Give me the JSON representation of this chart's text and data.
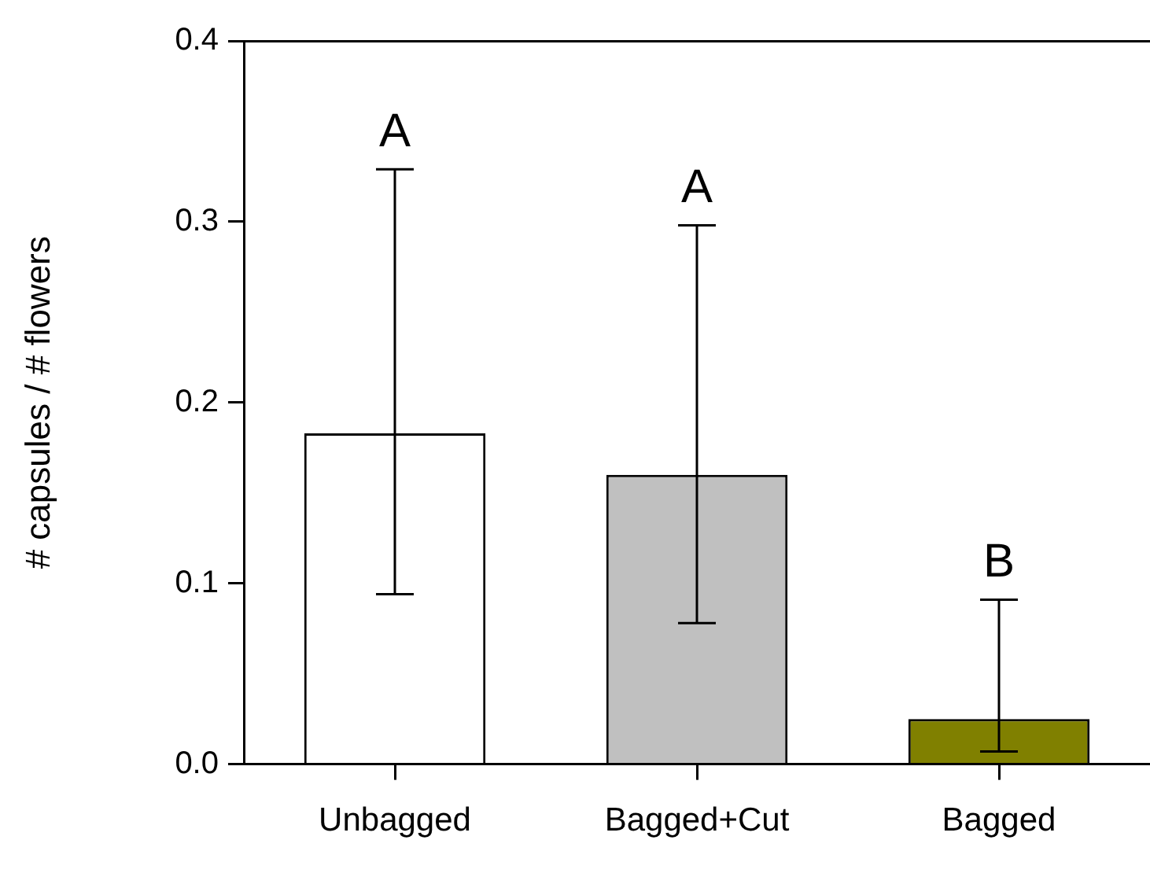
{
  "chart_data": {
    "type": "bar",
    "ylabel": "# capsules / # flowers",
    "categories": [
      "Unbagged",
      "Bagged+Cut",
      "Bagged"
    ],
    "values": [
      0.183,
      0.16,
      0.025
    ],
    "colors": [
      "#ffffff",
      "#c0c0c0",
      "#808000"
    ],
    "errors": [
      [
        0.094,
        0.329
      ],
      [
        0.078,
        0.298
      ],
      [
        0.007,
        0.091
      ]
    ],
    "ylim": [
      0,
      0.4
    ],
    "yticks": [
      {
        "value": 0,
        "label": "0.0"
      },
      {
        "value": 0.1,
        "label": "0.1"
      },
      {
        "value": 0.2,
        "label": "0.2"
      },
      {
        "value": 0.3,
        "label": "0.3"
      },
      {
        "value": 0.4,
        "label": "0.4"
      }
    ],
    "annotations": [
      {
        "text": "A",
        "x": "Unbagged",
        "y": 0.329
      },
      {
        "text": "A",
        "x": "Bagged+Cut",
        "y": 0.298
      },
      {
        "text": "B",
        "x": "Bagged",
        "y": 0.091
      }
    ],
    "grid": false
  }
}
